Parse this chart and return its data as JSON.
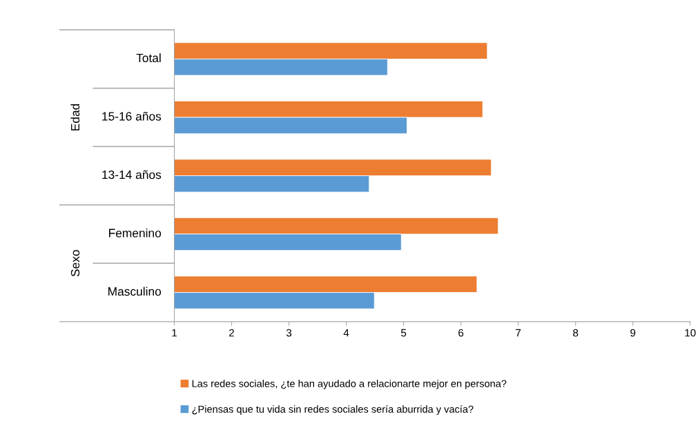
{
  "chart_data": {
    "type": "bar",
    "orientation": "horizontal",
    "categories": [
      "Total",
      "15-16 años",
      "13-14 años",
      "Femenino",
      "Masculino"
    ],
    "series": [
      {
        "name": "Las redes sociales, ¿te han ayudado a relacionarte mejor en persona?",
        "color": "#ed7d31",
        "values": [
          6.46,
          6.38,
          6.53,
          6.65,
          6.28
        ]
      },
      {
        "name": "¿Piensas que tu vida sin redes sociales sería aburrida y vacía?",
        "color": "#5b9bd5",
        "values": [
          4.72,
          5.06,
          4.4,
          4.96,
          4.49
        ]
      }
    ],
    "xlim": [
      1,
      10
    ],
    "xticks": [
      1,
      2,
      3,
      4,
      5,
      6,
      7,
      8,
      9,
      10
    ],
    "annotations": [
      "Edad",
      "Sexo"
    ],
    "grid": false,
    "legend": "bottom"
  }
}
